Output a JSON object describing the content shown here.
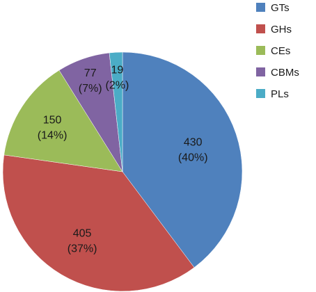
{
  "chart_data": {
    "type": "pie",
    "categories": [
      "GTs",
      "GHs",
      "CEs",
      "CBMs",
      "PLs"
    ],
    "values": [
      430,
      405,
      150,
      77,
      19
    ],
    "percent_labels": [
      "(40%)",
      "(37%)",
      "(14%)",
      "(7%)",
      "(2%)"
    ],
    "colors": [
      "#4F81BD",
      "#C0504D",
      "#9BBB59",
      "#8064A2",
      "#4BACC6"
    ],
    "start_angle_deg": 0,
    "direction": "clockwise",
    "legend_position": "top-right",
    "title": ""
  }
}
